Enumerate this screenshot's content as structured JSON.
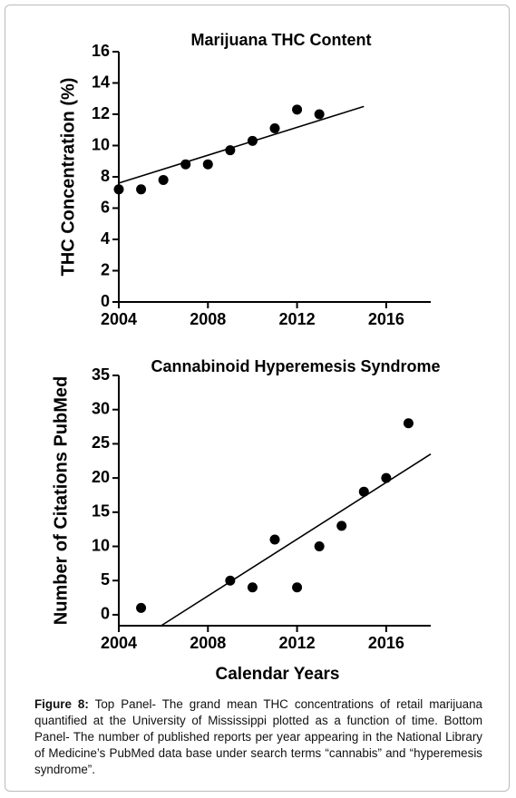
{
  "chart_data": [
    {
      "type": "scatter",
      "title": "Marijuana THC Content",
      "y_label": "THC Concentration (%)",
      "x": [
        2004,
        2005,
        2006,
        2007,
        2008,
        2009,
        2010,
        2011,
        2012,
        2013
      ],
      "values": [
        7.2,
        7.2,
        7.8,
        8.8,
        8.8,
        9.7,
        10.3,
        11.1,
        12.3,
        12.0
      ],
      "color": "#000000",
      "trendline": {
        "x": [
          2004,
          2015
        ],
        "y": [
          7.6,
          12.5
        ]
      },
      "xlim": [
        2004,
        2018
      ],
      "xticks": [
        2004,
        2008,
        2012,
        2016
      ],
      "ylim": [
        0,
        16
      ],
      "yticks": [
        0,
        2,
        4,
        6,
        8,
        10,
        12,
        14,
        16
      ]
    },
    {
      "type": "scatter",
      "title": "Cannabinoid Hyperemesis Syndrome",
      "y_label": "Number of Citations PubMed",
      "x_label": "Calendar Years",
      "x": [
        2005,
        2009,
        2010,
        2011,
        2012,
        2013,
        2014,
        2015,
        2016,
        2017
      ],
      "values": [
        1,
        5,
        4,
        11,
        4,
        10,
        13,
        18,
        20,
        28
      ],
      "color": "#000000",
      "trendline": {
        "x": [
          2005.9,
          2018
        ],
        "y": [
          -1.6,
          23.5
        ]
      },
      "xlim": [
        2004,
        2018
      ],
      "xticks": [
        2004,
        2008,
        2012,
        2016
      ],
      "ylim": [
        -1.6,
        35
      ],
      "yticks": [
        0,
        5,
        10,
        15,
        20,
        25,
        30,
        35
      ]
    }
  ],
  "caption": {
    "label": "Figure 8:",
    "text": "Top Panel- The grand mean THC concentrations of retail marijuana quantified at the University of Mississippi plotted as a function of time. Bottom Panel- The number of published reports per year appearing in the National Library of Medicine’s PubMed data base under search terms “cannabis” and “hyperemesis syndrome”."
  }
}
